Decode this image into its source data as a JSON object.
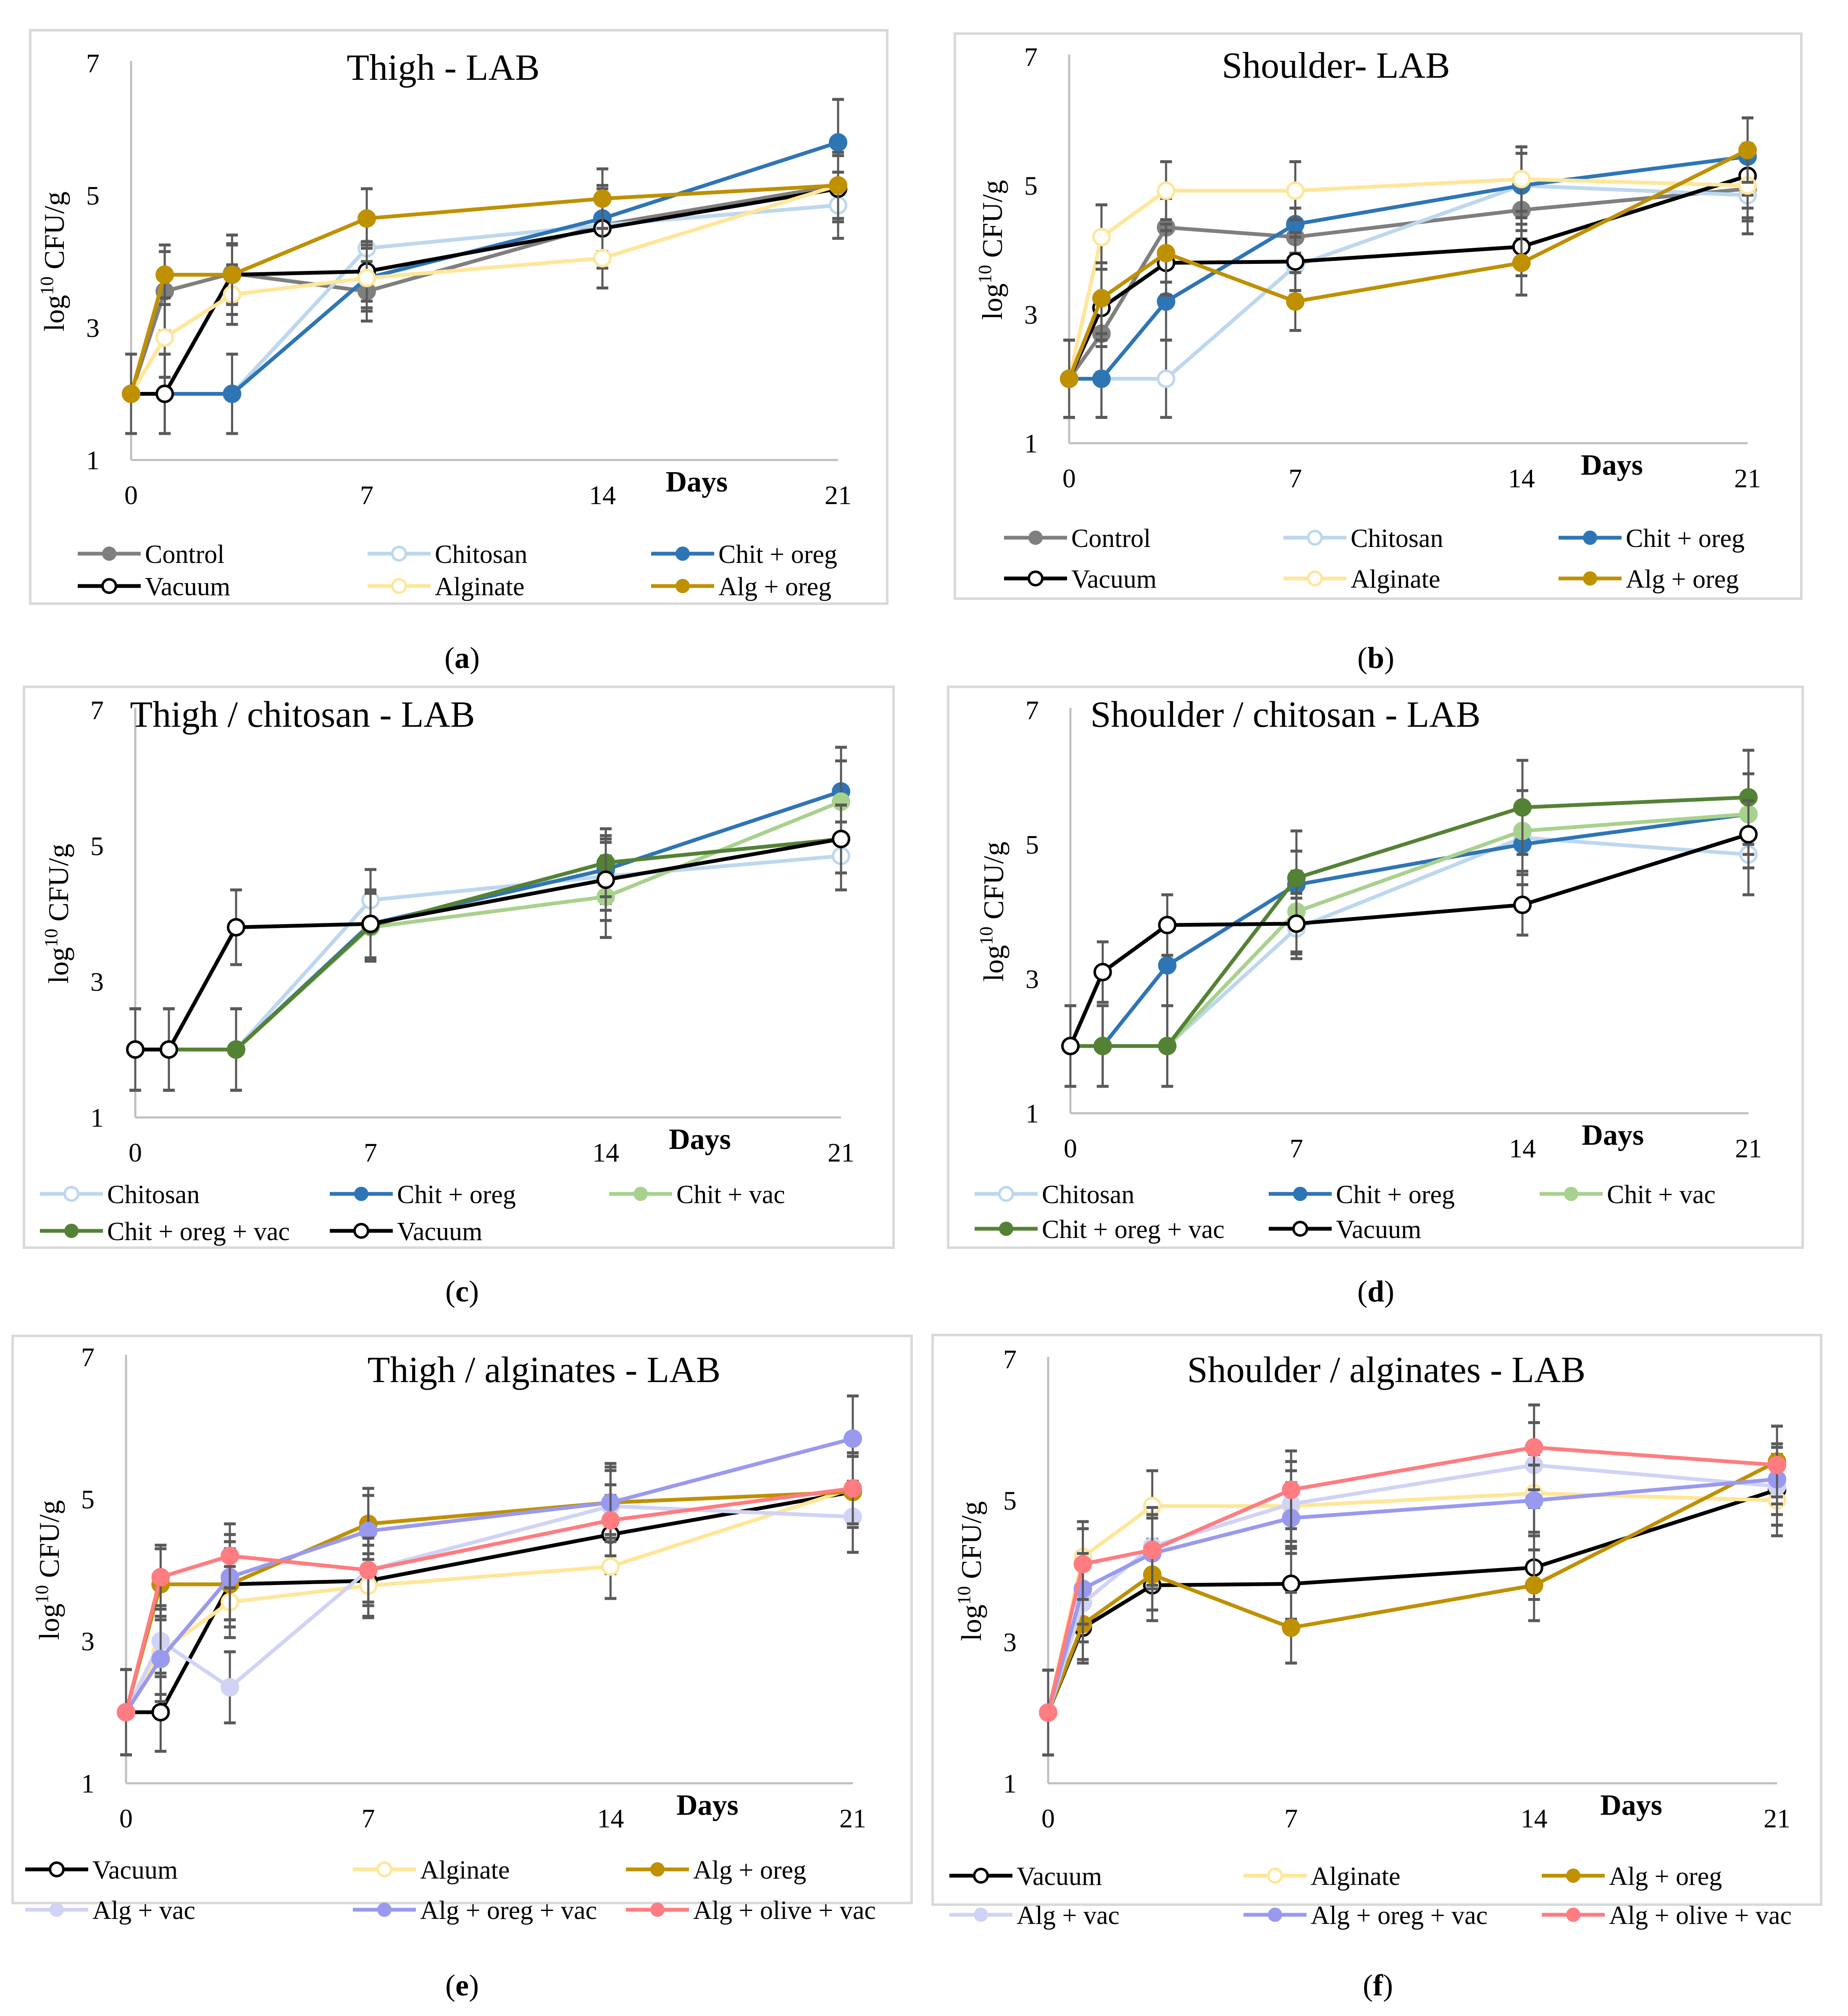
{
  "figure": {
    "panel_labels": [
      "(a)",
      "(b)",
      "(c)",
      "(d)",
      "(e)",
      "(f)"
    ]
  },
  "colors": {
    "Control": "#7f7f7f",
    "Chitosan": "#bdd7ee",
    "Chit + oreg": "#2e75b6",
    "Vacuum": "#000000",
    "Alginate": "#ffe699",
    "Alg + oreg": "#bf9000",
    "Chit + vac": "#a9d18e",
    "Chit + oreg + vac": "#548235",
    "Alg + vac": "#d0d3f5",
    "Alg + oreg + vac": "#9999f0",
    "Alg + olive + vac": "#ff7c80",
    "error_bar": "#595959",
    "axis": "#bfbfbf",
    "frame": "#d9d9d9"
  },
  "chart_data": [
    {
      "type": "line",
      "panel": "(a)",
      "title": "Thigh - LAB",
      "ylabel": "log10 CFU/g",
      "xlabel": "Days",
      "x": [
        0,
        1,
        3,
        7,
        14,
        21
      ],
      "xticks": [
        0,
        7,
        14,
        21
      ],
      "yticks": [
        1,
        3,
        5,
        7
      ],
      "ylim": [
        1,
        7
      ],
      "xlim": [
        0,
        21
      ],
      "series": [
        {
          "name": "Control",
          "marker": "filled",
          "values": [
            2.0,
            3.55,
            3.82,
            3.55,
            4.55,
            5.15
          ],
          "err": [
            0.6,
            0.6,
            0.45,
            0.45,
            0.45,
            0.5
          ]
        },
        {
          "name": "Chitosan",
          "marker": "open",
          "values": [
            2.0,
            2.0,
            2.0,
            4.2,
            4.55,
            4.85
          ],
          "err": [
            0.6,
            0.6,
            0.6,
            0.45,
            0.45,
            0.5
          ]
        },
        {
          "name": "Chit + oreg",
          "marker": "filled",
          "values": [
            2.0,
            2.0,
            2.0,
            3.75,
            4.65,
            5.8
          ],
          "err": [
            0.6,
            0.6,
            0.6,
            0.5,
            0.5,
            0.65
          ]
        },
        {
          "name": "Vacuum",
          "marker": "open",
          "values": [
            2.0,
            2.0,
            3.8,
            3.85,
            4.5,
            5.1
          ],
          "err": [
            0.6,
            0.6,
            0.6,
            0.45,
            0.6,
            0.5
          ]
        },
        {
          "name": "Alginate",
          "marker": "open",
          "values": [
            2.0,
            2.85,
            3.5,
            3.75,
            4.05,
            5.15
          ],
          "err": [
            0.6,
            0.6,
            0.45,
            0.45,
            0.45,
            0.5
          ]
        },
        {
          "name": "Alg + oreg",
          "marker": "filled",
          "values": [
            2.0,
            3.8,
            3.8,
            4.65,
            4.95,
            5.15
          ],
          "err": [
            0.6,
            0.45,
            0.45,
            0.45,
            0.45,
            0.5
          ]
        }
      ],
      "legend": [
        [
          "Control",
          "Chitosan",
          "Chit + oreg"
        ],
        [
          "Vacuum",
          "Alginate",
          "Alg + oreg"
        ]
      ]
    },
    {
      "type": "line",
      "panel": "(b)",
      "title": "Shoulder- LAB",
      "ylabel": "log10 CFU/g",
      "xlabel": "Days",
      "x": [
        0,
        1,
        3,
        7,
        14,
        21
      ],
      "xticks": [
        0,
        7,
        14,
        21
      ],
      "yticks": [
        1,
        3,
        5,
        7
      ],
      "ylim": [
        1,
        7
      ],
      "xlim": [
        0,
        21
      ],
      "series": [
        {
          "name": "Control",
          "marker": "filled",
          "values": [
            2.0,
            2.7,
            4.35,
            4.2,
            4.62,
            4.95
          ],
          "err": [
            0.6,
            0.6,
            0.45,
            0.45,
            0.45,
            0.5
          ]
        },
        {
          "name": "Chitosan",
          "marker": "open",
          "values": [
            2.0,
            2.0,
            2.0,
            3.75,
            5.0,
            4.85
          ],
          "err": [
            0.6,
            0.6,
            0.6,
            0.45,
            0.5,
            0.6
          ]
        },
        {
          "name": "Chit + oreg",
          "marker": "filled",
          "values": [
            2.0,
            2.0,
            3.2,
            4.4,
            5.0,
            5.45
          ],
          "err": [
            0.6,
            0.6,
            0.6,
            0.45,
            0.6,
            0.6
          ]
        },
        {
          "name": "Vacuum",
          "marker": "open",
          "values": [
            2.0,
            3.1,
            3.8,
            3.82,
            4.05,
            5.15
          ],
          "err": [
            0.6,
            0.6,
            0.5,
            0.45,
            0.45,
            0.5
          ]
        },
        {
          "name": "Alginate",
          "marker": "open",
          "values": [
            2.0,
            4.2,
            4.92,
            4.92,
            5.1,
            5.0
          ],
          "err": [
            0.6,
            0.5,
            0.45,
            0.45,
            0.5,
            0.5
          ]
        },
        {
          "name": "Alg + oreg",
          "marker": "filled",
          "values": [
            2.0,
            3.25,
            3.95,
            3.2,
            3.8,
            5.55
          ],
          "err": [
            0.6,
            0.55,
            0.45,
            0.45,
            0.5,
            0.5
          ]
        }
      ],
      "legend": [
        [
          "Control",
          "Chitosan",
          "Chit + oreg"
        ],
        [
          "Vacuum",
          "Alginate",
          "Alg + oreg"
        ]
      ]
    },
    {
      "type": "line",
      "panel": "(c)",
      "title": "Thigh / chitosan - LAB",
      "ylabel": "log10 CFU/g",
      "xlabel": "Days",
      "x": [
        0,
        1,
        3,
        7,
        14,
        21
      ],
      "xticks": [
        0,
        7,
        14,
        21
      ],
      "yticks": [
        1,
        3,
        5,
        7
      ],
      "ylim": [
        1,
        7
      ],
      "xlim": [
        0,
        21
      ],
      "series": [
        {
          "name": "Chitosan",
          "marker": "open",
          "values": [
            2.0,
            2.0,
            2.0,
            4.2,
            4.55,
            4.85
          ],
          "err": [
            0.6,
            0.6,
            0.6,
            0.45,
            0.5,
            0.5
          ]
        },
        {
          "name": "Chit + oreg",
          "marker": "filled",
          "values": [
            2.0,
            2.0,
            2.0,
            3.85,
            4.65,
            5.8
          ],
          "err": [
            0.6,
            0.6,
            0.6,
            0.5,
            0.5,
            0.65
          ]
        },
        {
          "name": "Chit + vac",
          "marker": "filled",
          "values": [
            2.0,
            2.0,
            2.0,
            3.8,
            4.25,
            5.65
          ],
          "err": [
            0.6,
            0.6,
            0.6,
            0.5,
            0.6,
            0.6
          ]
        },
        {
          "name": "Chit + oreg + vac",
          "marker": "filled",
          "values": [
            2.0,
            2.0,
            2.0,
            3.82,
            4.75,
            5.1
          ],
          "err": [
            0.6,
            0.6,
            0.6,
            0.5,
            0.5,
            0.5
          ]
        },
        {
          "name": "Vacuum",
          "marker": "open",
          "values": [
            2.0,
            2.0,
            3.8,
            3.85,
            4.5,
            5.1
          ],
          "err": [
            0.6,
            0.6,
            0.55,
            0.5,
            0.6,
            0.5
          ]
        }
      ],
      "legend": [
        [
          "Chitosan",
          "Chit + oreg",
          "Chit + vac"
        ],
        [
          "Chit + oreg + vac",
          "Vacuum"
        ]
      ]
    },
    {
      "type": "line",
      "panel": "(d)",
      "title": "Shoulder / chitosan - LAB",
      "ylabel": "log10 CFU/g",
      "xlabel": "Days",
      "x": [
        0,
        1,
        3,
        7,
        14,
        21
      ],
      "xticks": [
        0,
        7,
        14,
        21
      ],
      "yticks": [
        1,
        3,
        5,
        7
      ],
      "ylim": [
        1,
        7
      ],
      "xlim": [
        0,
        21
      ],
      "series": [
        {
          "name": "Chitosan",
          "marker": "open",
          "values": [
            2.0,
            2.0,
            2.0,
            3.75,
            5.1,
            4.85
          ],
          "err": [
            0.6,
            0.6,
            0.6,
            0.45,
            0.5,
            0.6
          ]
        },
        {
          "name": "Chit + oreg",
          "marker": "filled",
          "values": [
            2.0,
            2.0,
            3.2,
            4.4,
            5.0,
            5.45
          ],
          "err": [
            0.6,
            0.6,
            0.6,
            0.5,
            0.6,
            0.6
          ]
        },
        {
          "name": "Chit + vac",
          "marker": "filled",
          "values": [
            2.0,
            2.0,
            2.0,
            4.0,
            5.2,
            5.45
          ],
          "err": [
            0.6,
            0.6,
            0.6,
            0.6,
            0.6,
            0.6
          ]
        },
        {
          "name": "Chit + oreg + vac",
          "marker": "filled",
          "values": [
            2.0,
            2.0,
            2.0,
            4.5,
            5.55,
            5.7
          ],
          "err": [
            0.6,
            0.6,
            0.6,
            0.7,
            0.7,
            0.7
          ]
        },
        {
          "name": "Vacuum",
          "marker": "open",
          "values": [
            2.0,
            3.1,
            3.8,
            3.82,
            4.1,
            5.15
          ],
          "err": [
            0.6,
            0.45,
            0.45,
            0.45,
            0.45,
            0.5
          ]
        }
      ],
      "legend": [
        [
          "Chitosan",
          "Chit + oreg",
          "Chit + vac"
        ],
        [
          "Chit + oreg + vac",
          "Vacuum"
        ]
      ]
    },
    {
      "type": "line",
      "panel": "(e)",
      "title": "Thigh / alginates - LAB",
      "ylabel": "log10 CFU/g",
      "xlabel": "Days",
      "x": [
        0,
        1,
        3,
        7,
        14,
        21
      ],
      "xticks": [
        0,
        7,
        14,
        21
      ],
      "yticks": [
        1,
        3,
        5,
        7
      ],
      "ylim": [
        1,
        7
      ],
      "xlim": [
        0,
        21
      ],
      "series": [
        {
          "name": "Vacuum",
          "marker": "open",
          "values": [
            2.0,
            2.0,
            3.8,
            3.85,
            4.5,
            5.1
          ],
          "err": [
            0.6,
            0.55,
            0.6,
            0.5,
            0.55,
            0.5
          ]
        },
        {
          "name": "Alginate",
          "marker": "open",
          "values": [
            2.0,
            2.85,
            3.55,
            3.78,
            4.05,
            5.15
          ],
          "err": [
            0.6,
            0.6,
            0.5,
            0.45,
            0.45,
            0.5
          ]
        },
        {
          "name": "Alg + oreg",
          "marker": "filled",
          "values": [
            2.0,
            3.8,
            3.8,
            4.65,
            4.95,
            5.1
          ],
          "err": [
            0.6,
            0.5,
            0.5,
            0.5,
            0.5,
            0.5
          ]
        },
        {
          "name": "Alg + vac",
          "marker": "filled",
          "values": [
            2.0,
            3.0,
            2.35,
            4.0,
            4.9,
            4.75
          ],
          "err": [
            0.6,
            0.5,
            0.5,
            0.5,
            0.5,
            0.5
          ]
        },
        {
          "name": "Alg + oreg + vac",
          "marker": "filled",
          "values": [
            2.0,
            2.75,
            3.9,
            4.55,
            4.95,
            5.85
          ],
          "err": [
            0.6,
            0.6,
            0.6,
            0.5,
            0.55,
            0.6
          ]
        },
        {
          "name": "Alg + olive + vac",
          "marker": "filled",
          "values": [
            2.0,
            3.9,
            4.2,
            4.0,
            4.7,
            5.15
          ],
          "err": [
            0.6,
            0.45,
            0.45,
            0.45,
            0.5,
            0.5
          ]
        }
      ],
      "legend": [
        [
          "Vacuum",
          "Alginate",
          "Alg + oreg"
        ],
        [
          "Alg + vac",
          "Alg + oreg + vac",
          "Alg + olive + vac"
        ]
      ]
    },
    {
      "type": "line",
      "panel": "(f)",
      "title": "Shoulder / alginates - LAB",
      "ylabel": "log10 CFU/g",
      "xlabel": "Days",
      "x": [
        0,
        1,
        3,
        7,
        14,
        21
      ],
      "xticks": [
        0,
        7,
        14,
        21
      ],
      "yticks": [
        1,
        3,
        5,
        7
      ],
      "ylim": [
        1,
        7
      ],
      "xlim": [
        0,
        21
      ],
      "series": [
        {
          "name": "Vacuum",
          "marker": "open",
          "values": [
            2.0,
            3.2,
            3.8,
            3.82,
            4.05,
            5.15
          ],
          "err": [
            0.6,
            0.5,
            0.5,
            0.5,
            0.45,
            0.5
          ]
        },
        {
          "name": "Alginate",
          "marker": "open",
          "values": [
            2.0,
            4.2,
            4.92,
            4.92,
            5.1,
            5.0
          ],
          "err": [
            0.6,
            0.5,
            0.5,
            0.5,
            0.55,
            0.5
          ]
        },
        {
          "name": "Alg + oreg",
          "marker": "filled",
          "values": [
            2.0,
            3.25,
            3.95,
            3.2,
            3.8,
            5.55
          ],
          "err": [
            0.6,
            0.5,
            0.5,
            0.5,
            0.5,
            0.5
          ]
        },
        {
          "name": "Alg + vac",
          "marker": "filled",
          "values": [
            2.0,
            3.55,
            4.35,
            4.95,
            5.5,
            5.2
          ],
          "err": [
            0.6,
            0.55,
            0.55,
            0.6,
            0.6,
            0.55
          ]
        },
        {
          "name": "Alg + oreg + vac",
          "marker": "filled",
          "values": [
            2.0,
            3.75,
            4.25,
            4.75,
            5.0,
            5.3
          ],
          "err": [
            0.6,
            0.5,
            0.5,
            0.5,
            0.5,
            0.5
          ]
        },
        {
          "name": "Alg + olive + vac",
          "marker": "filled",
          "values": [
            2.0,
            4.1,
            4.3,
            5.15,
            5.75,
            5.5
          ],
          "err": [
            0.6,
            0.5,
            0.5,
            0.55,
            0.6,
            0.55
          ]
        }
      ],
      "legend": [
        [
          "Vacuum",
          "Alginate",
          "Alg + oreg"
        ],
        [
          "Alg + vac",
          "Alg + oreg + vac",
          "Alg + olive + vac"
        ]
      ]
    }
  ]
}
